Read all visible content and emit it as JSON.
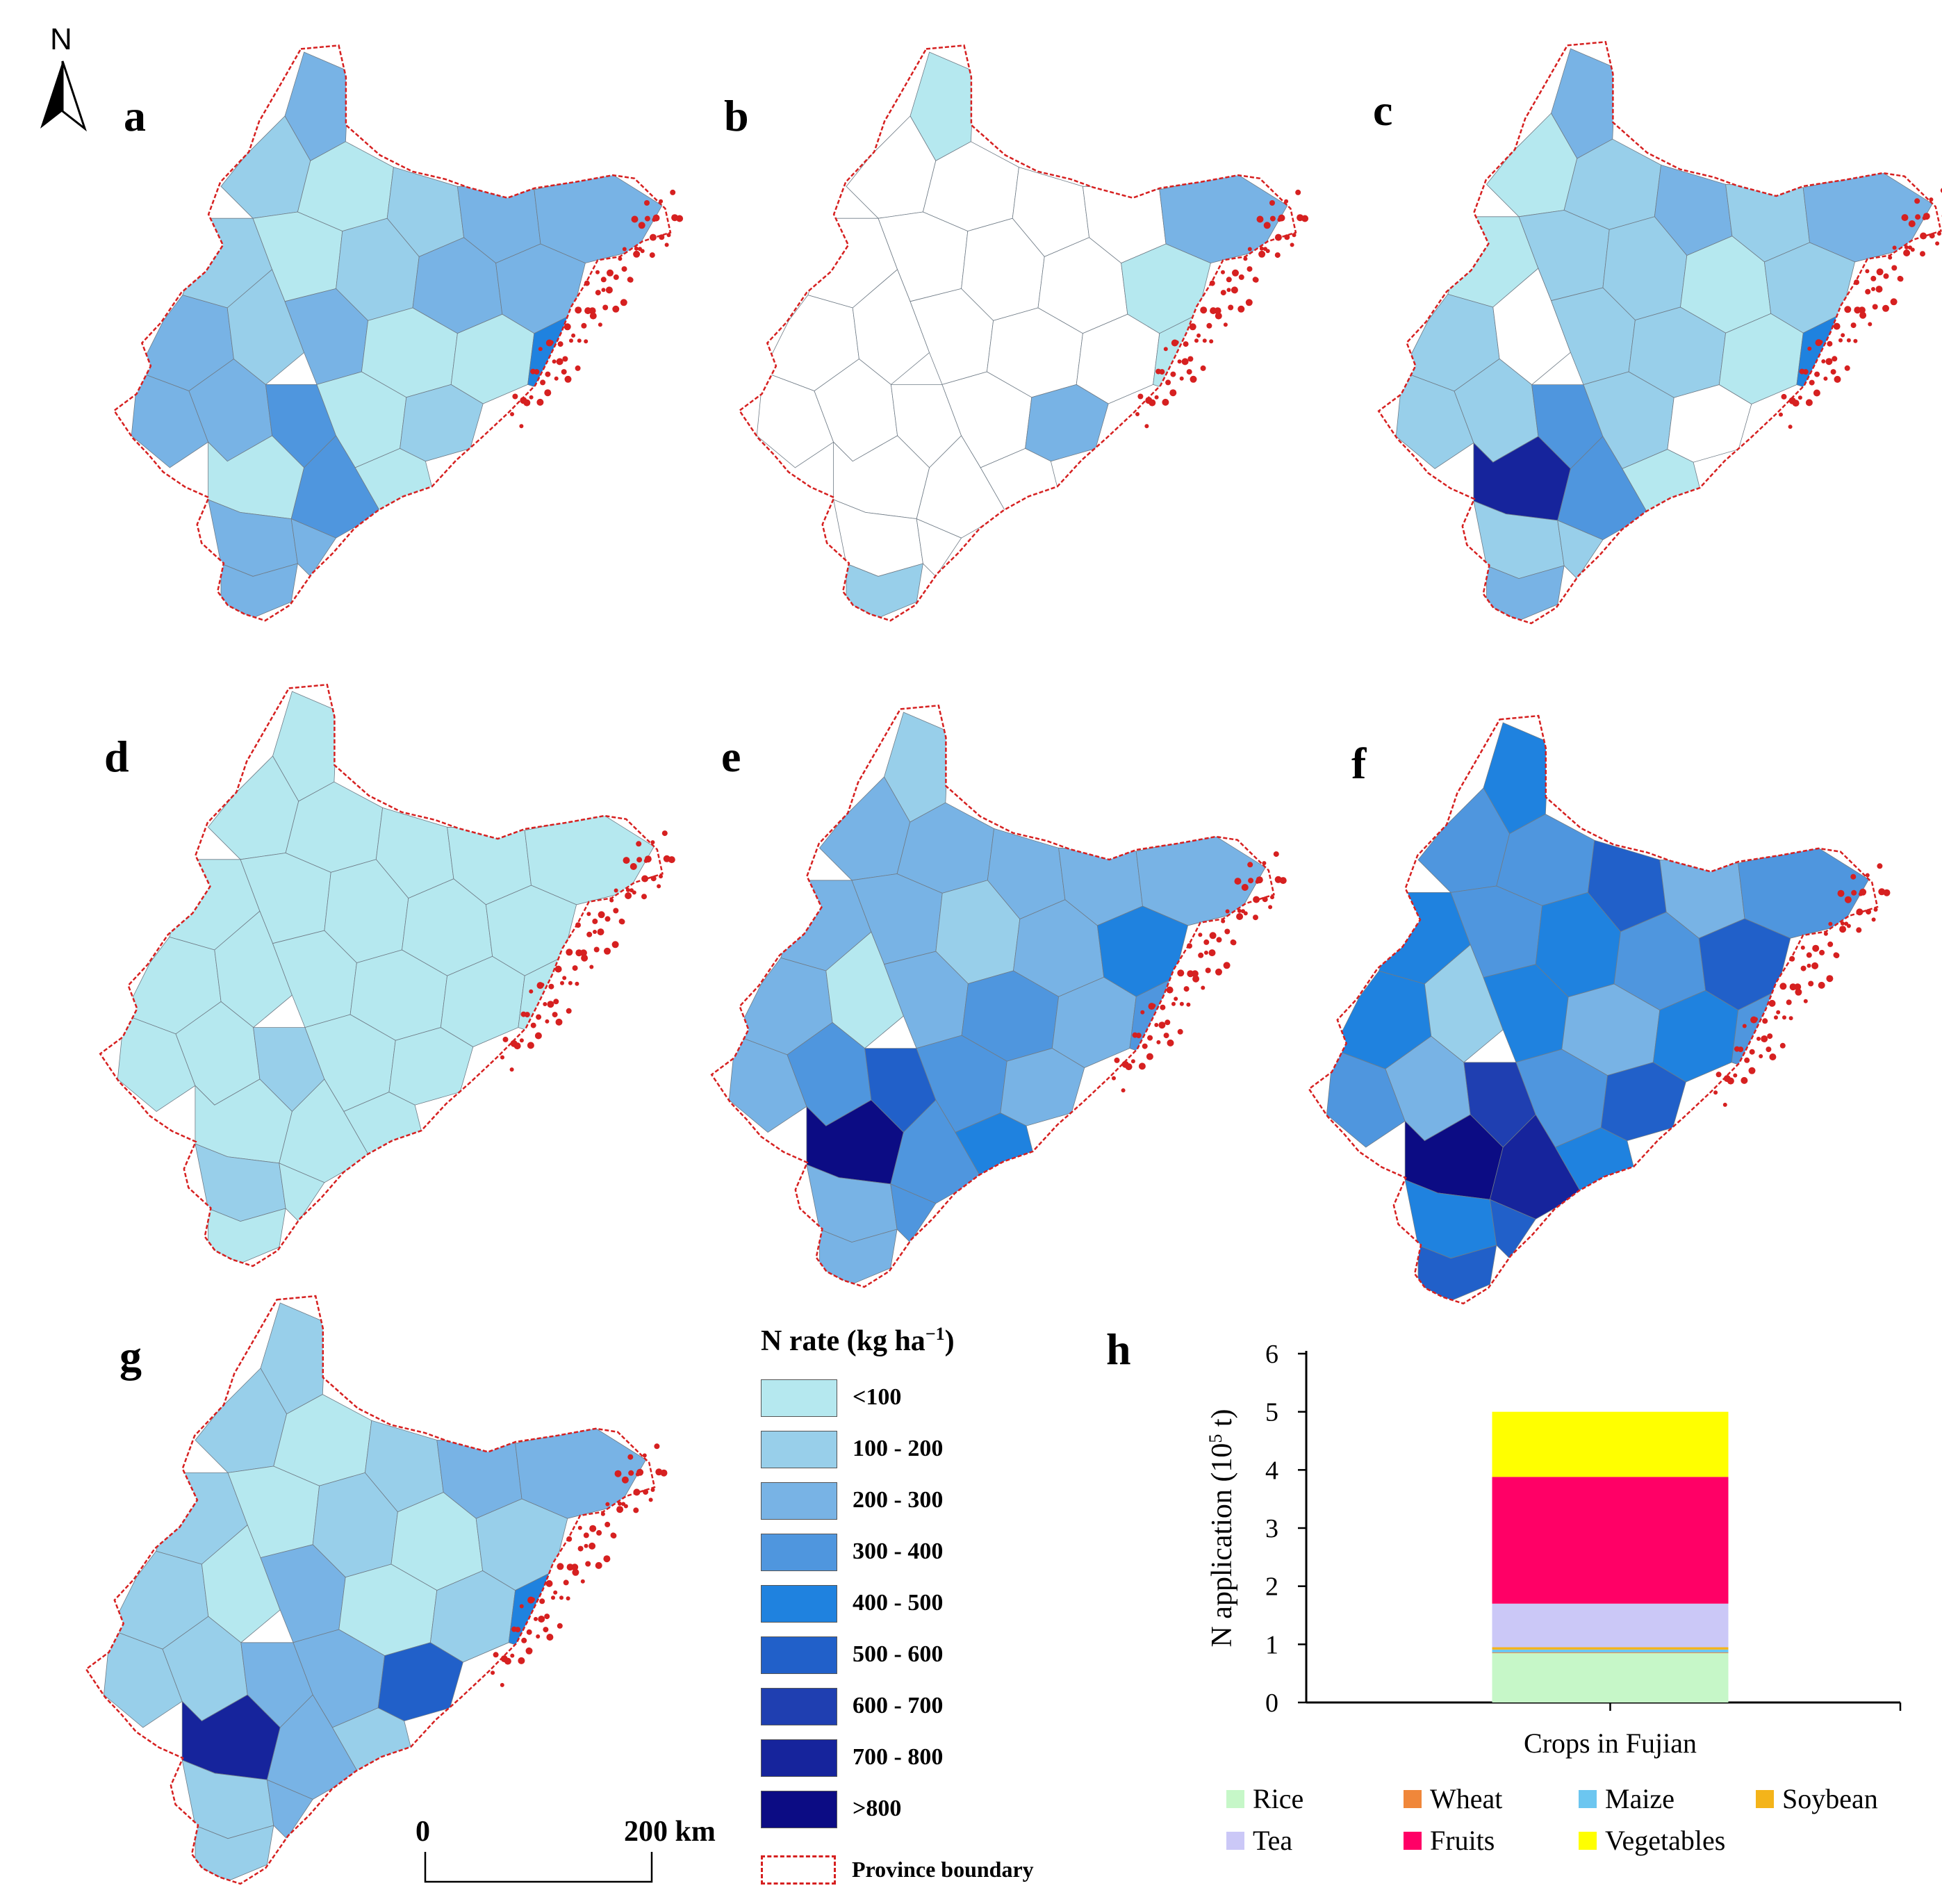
{
  "north_arrow": {
    "letter": "N"
  },
  "panels": [
    {
      "id": "a",
      "label": "a"
    },
    {
      "id": "b",
      "label": "b"
    },
    {
      "id": "c",
      "label": "c"
    },
    {
      "id": "d",
      "label": "d"
    },
    {
      "id": "e",
      "label": "e"
    },
    {
      "id": "f",
      "label": "f"
    },
    {
      "id": "g",
      "label": "g"
    },
    {
      "id": "h",
      "label": "h"
    }
  ],
  "legend": {
    "title_main": "N rate (kg ha",
    "title_sup": "−1",
    "title_close": ")",
    "classes": [
      {
        "label": "<100",
        "color": "#b5e8ef"
      },
      {
        "label": "100 - 200",
        "color": "#98cfea"
      },
      {
        "label": "200 - 300",
        "color": "#78b3e5"
      },
      {
        "label": "300 - 400",
        "color": "#4f96de"
      },
      {
        "label": "400 - 500",
        "color": "#1f82df"
      },
      {
        "label": "500 - 600",
        "color": "#2160c9"
      },
      {
        "label": "600 - 700",
        "color": "#1f3fb1"
      },
      {
        "label": "700 - 800",
        "color": "#16249c"
      },
      {
        "label": ">800",
        "color": "#0c0c84"
      }
    ],
    "province_boundary_label": "Province boundary",
    "province_boundary_color": "#d62020"
  },
  "scale_bar": {
    "start_label": "0",
    "end_label": "200 km"
  },
  "chart_data": {
    "type": "bar",
    "stacked": true,
    "categories": [
      "Crops in Fujian"
    ],
    "xlabel": "Crops in Fujian",
    "ylabel_main": "N application (10",
    "ylabel_sup": "5",
    "ylabel_close": " t)",
    "ylim": [
      0,
      6
    ],
    "yticks": [
      "0",
      "1",
      "2",
      "3",
      "4",
      "5",
      "6"
    ],
    "series": [
      {
        "name": "Rice",
        "values": [
          0.85
        ],
        "color": "#c6f7c8"
      },
      {
        "name": "Wheat",
        "values": [
          0.01
        ],
        "color": "#f0873a"
      },
      {
        "name": "Maize",
        "values": [
          0.05
        ],
        "color": "#6cc6f0"
      },
      {
        "name": "Soybean",
        "values": [
          0.04
        ],
        "color": "#f4b41a"
      },
      {
        "name": "Tea",
        "values": [
          0.75
        ],
        "color": "#cbc8f7"
      },
      {
        "name": "Fruits",
        "values": [
          2.18
        ],
        "color": "#ff0066"
      },
      {
        "name": "Vegetables",
        "values": [
          1.12
        ],
        "color": "#ffff00"
      }
    ]
  }
}
